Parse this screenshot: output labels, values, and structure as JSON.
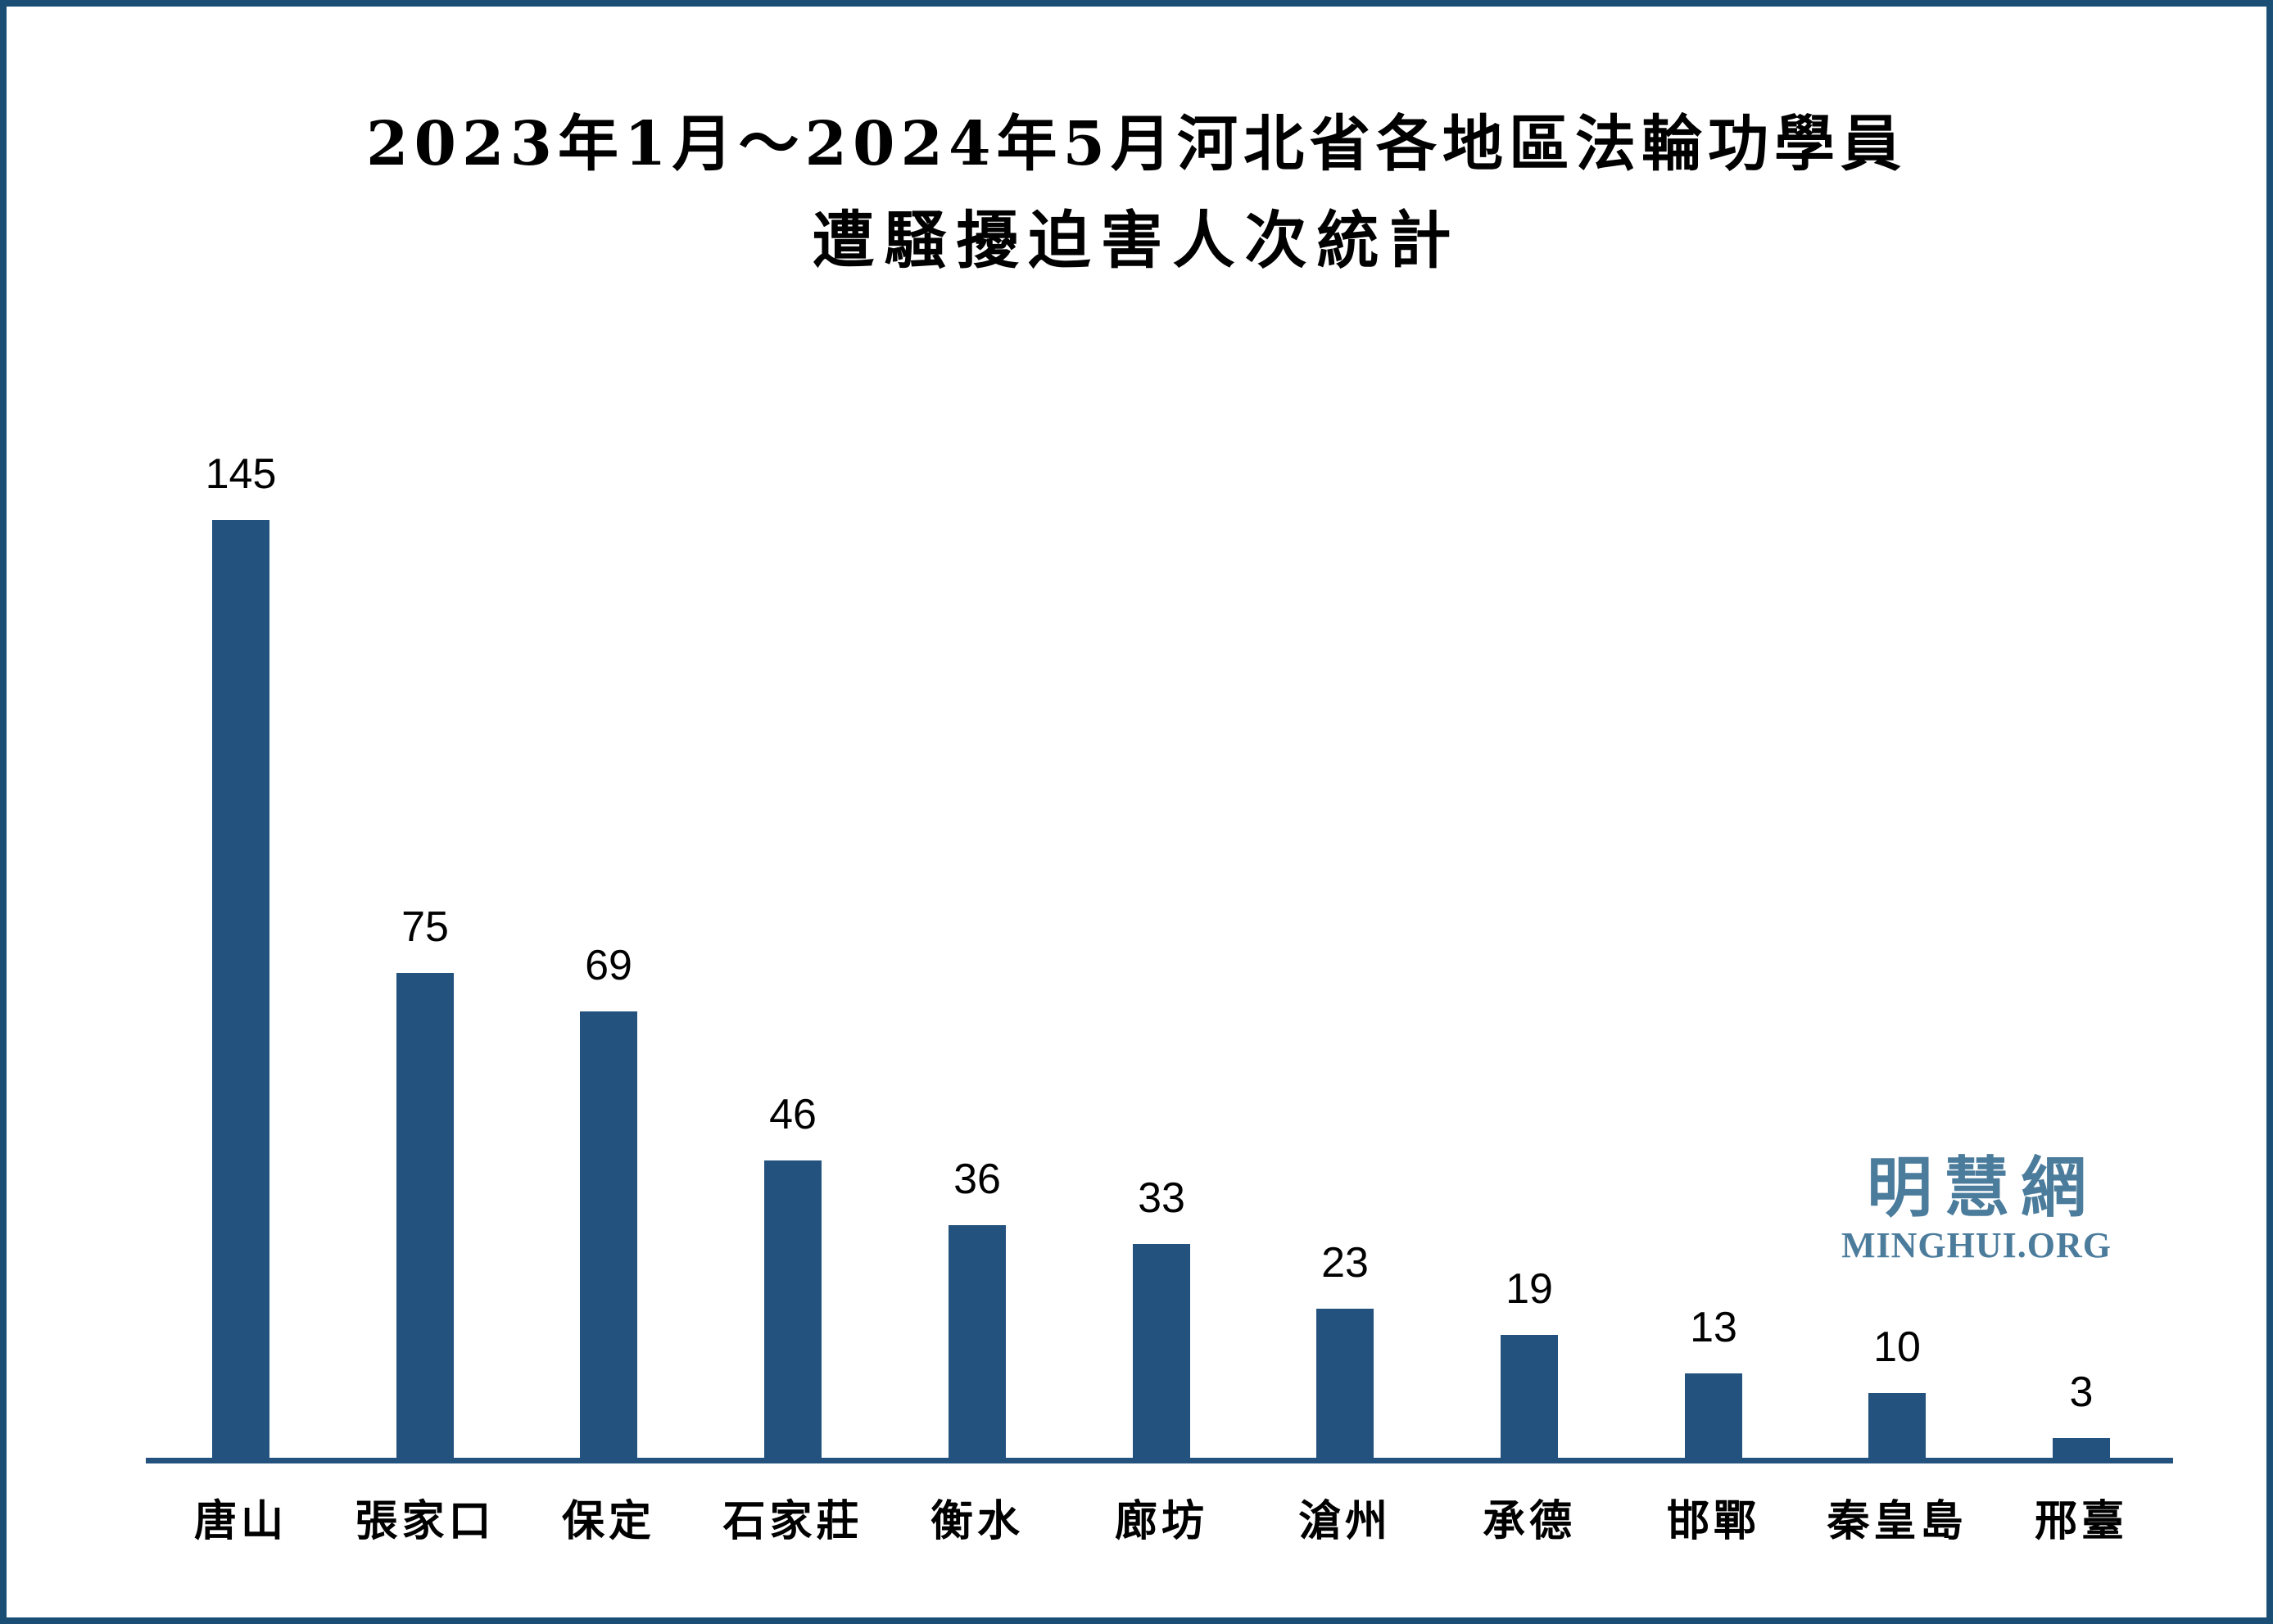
{
  "frame": {
    "background_color": "#FFFFFF",
    "border_color": "#1B4E74"
  },
  "title": {
    "line1": "2023年1月～2024年5月河北省各地區法輪功學員",
    "line2": "遭騷擾迫害人次統計"
  },
  "watermark": {
    "cjk": "明慧網",
    "latin": "MINGHUI.ORG",
    "color": "#4C7C9C"
  },
  "chart_data": {
    "type": "bar",
    "title": "2023年1月～2024年5月河北省各地區法輪功學員遭騷擾迫害人次統計",
    "categories": [
      "唐山",
      "張家口",
      "保定",
      "石家莊",
      "衡水",
      "廊坊",
      "滄州",
      "承德",
      "邯鄲",
      "秦皇島",
      "邢臺"
    ],
    "values": [
      145,
      75,
      69,
      46,
      36,
      33,
      23,
      19,
      13,
      10,
      3
    ],
    "xlabel": "",
    "ylabel": "",
    "ylim": [
      0,
      150
    ],
    "grid": false,
    "legend": false,
    "value_labels_shown": true,
    "bar_color": "#24527E",
    "axis_color": "#24527E"
  }
}
